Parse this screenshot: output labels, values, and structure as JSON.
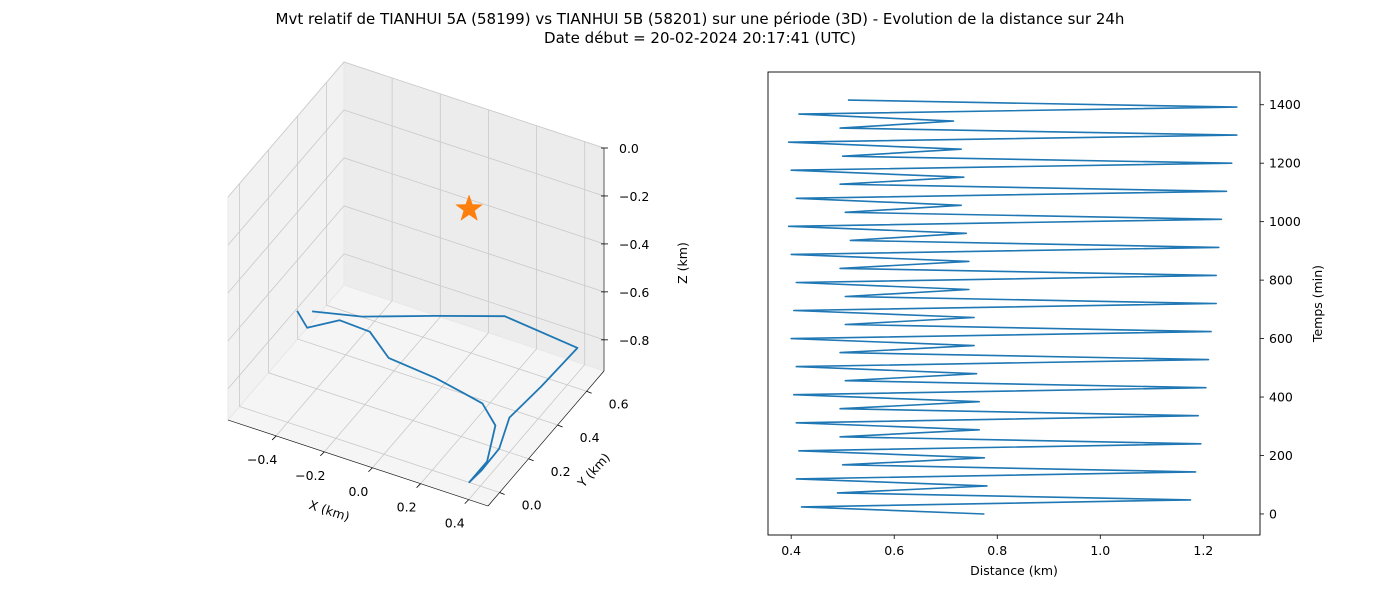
{
  "figure": {
    "title_line1": "Mvt relatif de TIANHUI 5A (58199) vs TIANHUI 5B (58201) sur une période (3D) - Evolution de la distance sur 24h",
    "title_line2": "Date début = 20-02-2024 20:17:41 (UTC)"
  },
  "chart_data": [
    {
      "type": "line3d",
      "series": [
        {
          "color": "#1f77b4",
          "points": [
            [
              -0.62,
              0.43,
              -0.84
            ],
            [
              -0.56,
              0.4,
              -0.87
            ],
            [
              -0.45,
              0.44,
              -0.83
            ],
            [
              -0.3,
              0.4,
              -0.8
            ],
            [
              -0.18,
              0.33,
              -0.82
            ],
            [
              0.02,
              0.32,
              -0.83
            ],
            [
              0.17,
              0.28,
              -0.82
            ],
            [
              0.27,
              0.23,
              -0.79
            ],
            [
              0.36,
              0.17,
              -0.81
            ],
            [
              0.38,
              0.08,
              -0.89
            ],
            [
              0.36,
              -0.01,
              -0.92
            ],
            [
              0.4,
              0.01,
              -0.87
            ],
            [
              0.43,
              0.08,
              -0.82
            ],
            [
              0.37,
              0.25,
              -0.83
            ],
            [
              0.4,
              0.42,
              -0.81
            ],
            [
              0.43,
              0.62,
              -0.78
            ],
            [
              0.14,
              0.6,
              -0.73
            ],
            [
              -0.12,
              0.55,
              -0.78
            ],
            [
              -0.38,
              0.48,
              -0.82
            ],
            [
              -0.57,
              0.45,
              -0.84
            ]
          ]
        }
      ],
      "marker": {
        "symbol": "star",
        "color": "#ff7f0e",
        "x": -0.02,
        "y": 0.62,
        "z": -0.35
      },
      "xlabel": "X (km)",
      "ylabel": "Y (km)",
      "zlabel": "Z (km)",
      "xticks": [
        -0.4,
        -0.2,
        0.0,
        0.2,
        0.4
      ],
      "yticks": [
        0.0,
        0.2,
        0.4,
        0.6
      ],
      "zticks": [
        0.0,
        -0.2,
        -0.4,
        -0.6,
        -0.8
      ],
      "xtick_labels": [
        "−0.4",
        "−0.2",
        "0.0",
        "0.2",
        "0.4"
      ],
      "ytick_labels": [
        "0.0",
        "0.2",
        "0.4",
        "0.6"
      ],
      "ztick_labels": [
        "0.0",
        "−0.2",
        "−0.4",
        "−0.6",
        "−0.8"
      ],
      "xlim": [
        -0.6,
        0.48
      ],
      "ylim": [
        -0.08,
        0.72
      ],
      "zlim": [
        -0.93,
        0.0
      ],
      "grid": true
    },
    {
      "type": "line",
      "xlabel": "Distance (km)",
      "ylabel": "Temps (min)",
      "yaxis_side": "right",
      "xlim": [
        0.355,
        1.31
      ],
      "ylim": [
        -72,
        1512
      ],
      "xticks": [
        0.4,
        0.6,
        0.8,
        1.0,
        1.2
      ],
      "yticks": [
        0,
        200,
        400,
        600,
        800,
        1000,
        1200,
        1400
      ],
      "xtick_labels": [
        "0.4",
        "0.6",
        "0.8",
        "1.0",
        "1.2"
      ],
      "ytick_labels": [
        "0",
        "200",
        "400",
        "600",
        "800",
        "1000",
        "1200",
        "1400"
      ],
      "series": [
        {
          "color": "#1f77b4",
          "x": [
            0.775,
            0.42,
            1.175,
            0.49,
            0.78,
            0.41,
            1.185,
            0.5,
            0.775,
            0.415,
            1.195,
            0.495,
            0.765,
            0.41,
            1.19,
            0.495,
            0.765,
            0.405,
            1.205,
            0.505,
            0.76,
            0.41,
            1.21,
            0.495,
            0.755,
            0.4,
            1.215,
            0.505,
            0.755,
            0.405,
            1.225,
            0.505,
            0.745,
            0.41,
            1.225,
            0.495,
            0.745,
            0.4,
            1.23,
            0.515,
            0.74,
            0.395,
            1.235,
            0.505,
            0.73,
            0.41,
            1.245,
            0.495,
            0.735,
            0.4,
            1.255,
            0.5,
            0.73,
            0.395,
            1.265,
            0.495,
            0.715,
            0.415,
            1.265,
            0.51
          ],
          "y": [
            0,
            24,
            48,
            72,
            96,
            120,
            144,
            168,
            192,
            216,
            240,
            264,
            288,
            312,
            336,
            360,
            384,
            408,
            432,
            456,
            480,
            504,
            528,
            552,
            576,
            600,
            624,
            648,
            672,
            696,
            720,
            744,
            768,
            792,
            816,
            840,
            864,
            888,
            912,
            936,
            960,
            984,
            1008,
            1032,
            1056,
            1080,
            1104,
            1128,
            1152,
            1176,
            1200,
            1224,
            1248,
            1272,
            1296,
            1320,
            1344,
            1368,
            1392,
            1416
          ]
        }
      ]
    }
  ]
}
